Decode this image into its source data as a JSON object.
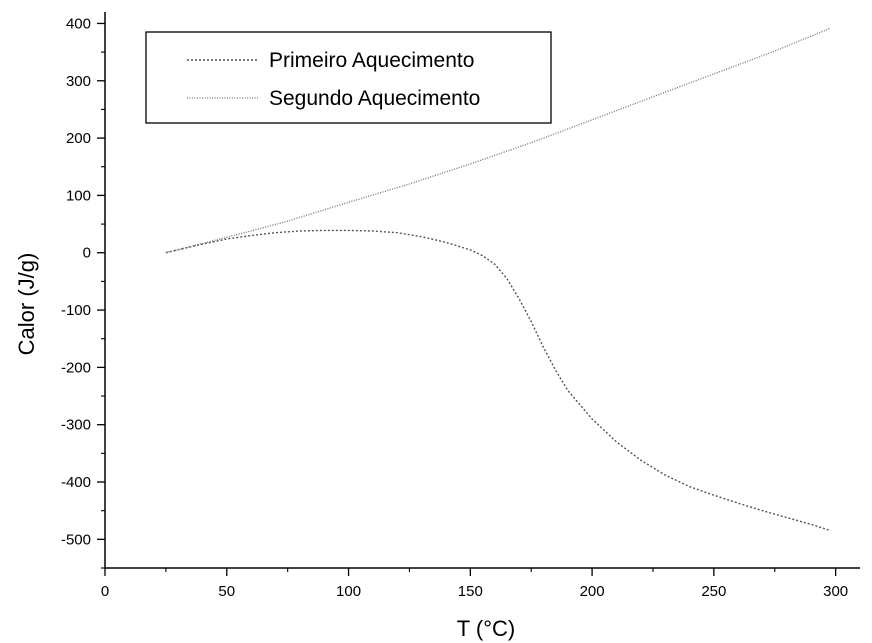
{
  "chart_data": {
    "type": "line",
    "title": "",
    "xlabel": "T (°C)",
    "ylabel": "Calor (J/g)",
    "xlim": [
      0,
      310
    ],
    "ylim": [
      -550,
      420
    ],
    "x_ticks": [
      0,
      50,
      100,
      150,
      200,
      250,
      300
    ],
    "y_ticks": [
      400,
      300,
      200,
      100,
      0,
      -100,
      -200,
      -300,
      -400,
      -500
    ],
    "x_tick_labels": [
      "0",
      "50",
      "100",
      "150",
      "200",
      "250",
      "300"
    ],
    "y_tick_labels": [
      "400",
      "300",
      "200",
      "100",
      "0",
      "-100",
      "-200",
      "-300",
      "-400",
      "-500"
    ],
    "grid": false,
    "legend_position": "top-left",
    "series": [
      {
        "name": "Primeiro Aquecimento",
        "color": "#555555",
        "x": [
          25,
          40,
          50,
          60,
          70,
          80,
          90,
          100,
          110,
          120,
          130,
          140,
          150,
          155,
          160,
          165,
          170,
          175,
          180,
          185,
          190,
          200,
          210,
          220,
          230,
          240,
          250,
          260,
          270,
          280,
          290,
          298
        ],
        "y": [
          0,
          15,
          24,
          30,
          35,
          38,
          39,
          39,
          38,
          35,
          28,
          18,
          5,
          -5,
          -20,
          -45,
          -80,
          -120,
          -165,
          -205,
          -240,
          -290,
          -330,
          -362,
          -388,
          -408,
          -423,
          -437,
          -450,
          -462,
          -474,
          -485
        ]
      },
      {
        "name": "Segundo Aquecimento",
        "color": "#777777",
        "x": [
          25,
          50,
          75,
          100,
          125,
          150,
          175,
          200,
          225,
          250,
          275,
          298
        ],
        "y": [
          0,
          27,
          55,
          88,
          120,
          155,
          192,
          232,
          272,
          312,
          352,
          392
        ]
      }
    ]
  }
}
